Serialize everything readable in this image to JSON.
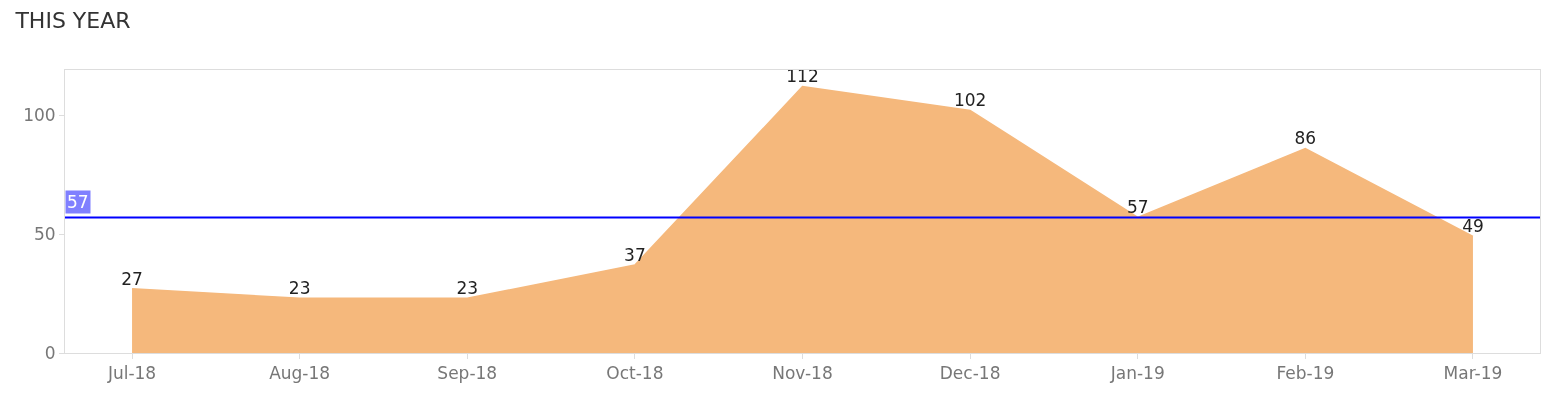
{
  "chart_data": {
    "type": "area",
    "title": "THIS YEAR",
    "categories": [
      "Jul-18",
      "Aug-18",
      "Sep-18",
      "Oct-18",
      "Nov-18",
      "Dec-18",
      "Jan-19",
      "Feb-19",
      "Mar-19"
    ],
    "series": [
      {
        "color": "#f5b87c",
        "values": [
          27,
          23,
          23,
          37,
          112,
          102,
          57,
          86,
          49
        ]
      }
    ],
    "data_labels": true,
    "ylim": [
      0,
      119
    ],
    "yticks": [
      0,
      50,
      100
    ],
    "ref_lines": [
      {
        "axis": "y",
        "value": 57,
        "label": "57",
        "color": "#0000ff"
      }
    ]
  }
}
